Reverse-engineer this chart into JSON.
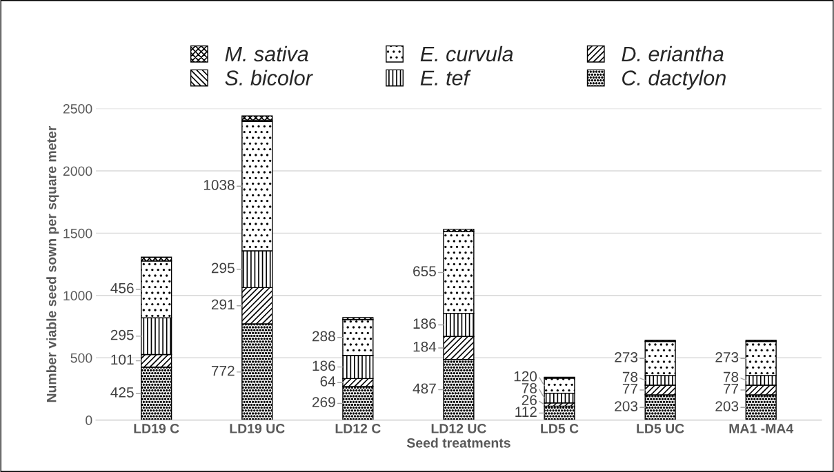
{
  "chart_data": {
    "type": "bar",
    "stacked": true,
    "xlabel": "Seed treatments",
    "ylabel": "Number viable seed sown per square meter",
    "categories": [
      "LD19 C",
      "LD19 UC",
      "LD12 C",
      "LD12 UC",
      "LD5 C",
      "LD5 UC",
      "MA1 -MA4"
    ],
    "series": [
      {
        "name": "C. dactylon",
        "color": "#000000",
        "values": [
          425,
          772,
          269,
          487,
          112,
          203,
          203
        ],
        "value_labels": [
          "425",
          "772",
          "269",
          "487",
          "112",
          "203",
          "203"
        ]
      },
      {
        "name": "D. eriantha",
        "color": "#000000",
        "values": [
          101,
          291,
          64,
          184,
          26,
          77,
          77
        ],
        "value_labels": [
          "101",
          "291",
          "64",
          "184",
          "26",
          "77",
          "77"
        ]
      },
      {
        "name": "E. tef",
        "color": "#000000",
        "values": [
          295,
          295,
          186,
          186,
          78,
          78,
          78
        ],
        "value_labels": [
          "295",
          "295",
          "186",
          "186",
          "78",
          "78",
          "78"
        ]
      },
      {
        "name": "E. curvula",
        "color": "#000000",
        "values": [
          456,
          1038,
          288,
          655,
          120,
          273,
          273
        ],
        "value_labels": [
          "456",
          "1038",
          "288",
          "655",
          "120",
          "273",
          "273"
        ]
      },
      {
        "name": "S. bicolor",
        "color": "#000000",
        "values": [
          null,
          10,
          null,
          null,
          3,
          10,
          10
        ]
      },
      {
        "name": "M. sativa",
        "color": "#000000",
        "values": [
          30,
          35,
          15,
          20,
          5,
          0,
          0
        ]
      }
    ],
    "ylim": [
      0,
      2500
    ],
    "yticks": [
      0,
      500,
      1000,
      1500,
      2000,
      2500
    ],
    "grid": "y",
    "legend": "top"
  }
}
